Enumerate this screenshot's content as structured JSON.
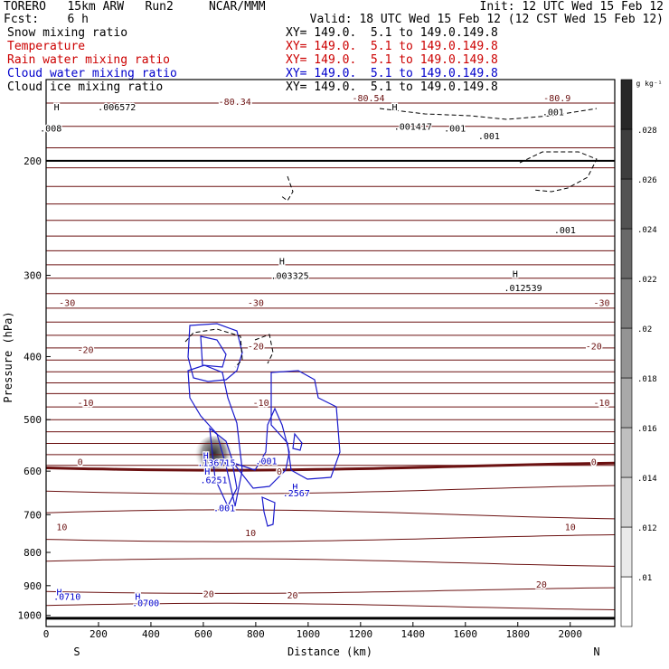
{
  "header": {
    "model": "TORERO   15km ARW   Run2     NCAR/MMM",
    "init": "Init: 12 UTC Wed 15 Feb 12",
    "fcst": "Fcst:    6 h",
    "valid": "Valid: 18 UTC Wed 15 Feb 12 (12 CST Wed 15 Feb 12)",
    "fields": [
      {
        "name": "Snow mixing ratio",
        "xy": "XY= 149.0.  5.1 to 149.0.149.8",
        "color": "#000000"
      },
      {
        "name": "Temperature",
        "xy": "XY= 149.0.  5.1 to 149.0.149.8",
        "color": "#cc0000"
      },
      {
        "name": "Rain water mixing ratio",
        "xy": "XY= 149.0.  5.1 to 149.0.149.8",
        "color": "#cc0000"
      },
      {
        "name": "Cloud water mixing ratio",
        "xy": "XY= 149.0.  5.1 to 149.0.149.8",
        "color": "#0000cc"
      },
      {
        "name": "Cloud ice mixing ratio",
        "xy": "XY= 149.0.  5.1 to 149.0.149.8",
        "color": "#000000"
      }
    ]
  },
  "chart_data": {
    "type": "contour",
    "xlabel": "Distance (km)",
    "ylabel": "Pressure (hPa)",
    "xlim": [
      0,
      2170
    ],
    "ylim": [
      150,
      1040
    ],
    "xticks": [
      0,
      200,
      400,
      600,
      800,
      1000,
      1200,
      1400,
      1600,
      1800,
      2000
    ],
    "yticks": [
      200,
      300,
      400,
      500,
      600,
      700,
      800,
      900,
      1000
    ],
    "yaxis": "pressure-log",
    "endpoints": {
      "left": "S",
      "right": "N"
    },
    "colorbar": {
      "unit": "g kg⁻¹",
      "ticks": [
        ".01",
        ".012",
        ".014",
        ".016",
        ".018",
        ".02",
        ".022",
        ".024",
        ".026",
        ".028"
      ]
    },
    "temperature_labels": [
      {
        "label": "-80.34",
        "x": 720,
        "p": 162
      },
      {
        "label": "-80.54",
        "x": 1230,
        "p": 160
      },
      {
        "label": "-80.9",
        "x": 1950,
        "p": 160
      },
      {
        "label": "-30",
        "x": 80,
        "p": 330
      },
      {
        "label": "-30",
        "x": 800,
        "p": 330
      },
      {
        "label": "-30",
        "x": 2120,
        "p": 330
      },
      {
        "label": "-20",
        "x": 150,
        "p": 390
      },
      {
        "label": "-20",
        "x": 800,
        "p": 385
      },
      {
        "label": "-20",
        "x": 2090,
        "p": 385
      },
      {
        "label": "-10",
        "x": 150,
        "p": 470
      },
      {
        "label": "-10",
        "x": 820,
        "p": 470
      },
      {
        "label": "-10",
        "x": 2120,
        "p": 470
      },
      {
        "label": "0",
        "x": 130,
        "p": 580
      },
      {
        "label": "0",
        "x": 890,
        "p": 600
      },
      {
        "label": "0",
        "x": 2090,
        "p": 580
      },
      {
        "label": "10",
        "x": 60,
        "p": 730
      },
      {
        "label": "10",
        "x": 780,
        "p": 745
      },
      {
        "label": "10",
        "x": 2000,
        "p": 730
      },
      {
        "label": "20",
        "x": 620,
        "p": 925
      },
      {
        "label": "20",
        "x": 940,
        "p": 930
      },
      {
        "label": "20",
        "x": 1890,
        "p": 895
      }
    ],
    "annotations": [
      {
        "label": "H",
        "x": 40,
        "p": 165,
        "color": "#000000"
      },
      {
        "label": ".006572",
        "x": 270,
        "p": 165,
        "color": "#000000"
      },
      {
        "label": ".008",
        "x": 18,
        "p": 178,
        "color": "#000000"
      },
      {
        "label": "H",
        "x": 1330,
        "p": 165,
        "color": "#000000"
      },
      {
        "label": ".001417",
        "x": 1400,
        "p": 177,
        "color": "#000000"
      },
      {
        "label": ".001",
        "x": 1560,
        "p": 178,
        "color": "#000000"
      },
      {
        "label": ".001",
        "x": 1690,
        "p": 183,
        "color": "#000000"
      },
      {
        "label": ".001",
        "x": 1935,
        "p": 168,
        "color": "#000000"
      },
      {
        "label": ".001",
        "x": 1980,
        "p": 255,
        "color": "#000000"
      },
      {
        "label": "H",
        "x": 900,
        "p": 285,
        "color": "#000000"
      },
      {
        "label": ".003325",
        "x": 930,
        "p": 300,
        "color": "#000000"
      },
      {
        "label": "H",
        "x": 1790,
        "p": 298,
        "color": "#000000"
      },
      {
        "label": ".012539",
        "x": 1820,
        "p": 313,
        "color": "#000000"
      },
      {
        "label": "H",
        "x": 610,
        "p": 567,
        "color": "#0000cc"
      },
      {
        "label": ".136715",
        "x": 650,
        "p": 582,
        "color": "#0000cc"
      },
      {
        "label": ".001",
        "x": 840,
        "p": 578,
        "color": "#0000cc"
      },
      {
        "label": "H",
        "x": 615,
        "p": 600,
        "color": "#0000cc"
      },
      {
        "label": ".6251",
        "x": 640,
        "p": 618,
        "color": "#0000cc"
      },
      {
        "label": "H",
        "x": 950,
        "p": 633,
        "color": "#0000cc"
      },
      {
        "label": ".2567",
        "x": 955,
        "p": 648,
        "color": "#0000cc"
      },
      {
        "label": ".001",
        "x": 680,
        "p": 683,
        "color": "#0000cc"
      },
      {
        "label": "H",
        "x": 50,
        "p": 920,
        "color": "#0000cc"
      },
      {
        "label": ".0710",
        "x": 80,
        "p": 935,
        "color": "#0000cc"
      },
      {
        "label": "H",
        "x": 350,
        "p": 935,
        "color": "#0000cc"
      },
      {
        "label": ".0700",
        "x": 380,
        "p": 955,
        "color": "#0000cc"
      }
    ]
  }
}
